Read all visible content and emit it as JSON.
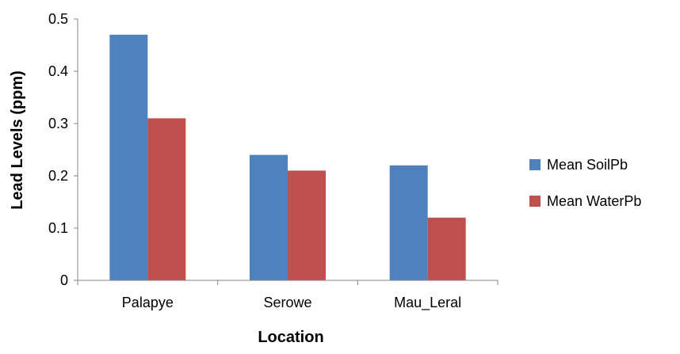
{
  "chart_data": {
    "type": "bar",
    "title": "",
    "xlabel": "Location",
    "ylabel": "Lead Levels (ppm)",
    "categories": [
      "Palapye",
      "Serowe",
      "Mau_Leral"
    ],
    "series": [
      {
        "name": "Mean SoilPb",
        "values": [
          0.47,
          0.24,
          0.22
        ],
        "color": "#4F81BD"
      },
      {
        "name": "Mean WaterPb",
        "values": [
          0.31,
          0.21,
          0.12
        ],
        "color": "#C0504D"
      }
    ],
    "yticks": [
      "0",
      "0.1",
      "0.2",
      "0.3",
      "0.4",
      "0.5"
    ],
    "ylim": [
      0,
      0.5
    ],
    "grid": false,
    "legend_position": "right"
  }
}
